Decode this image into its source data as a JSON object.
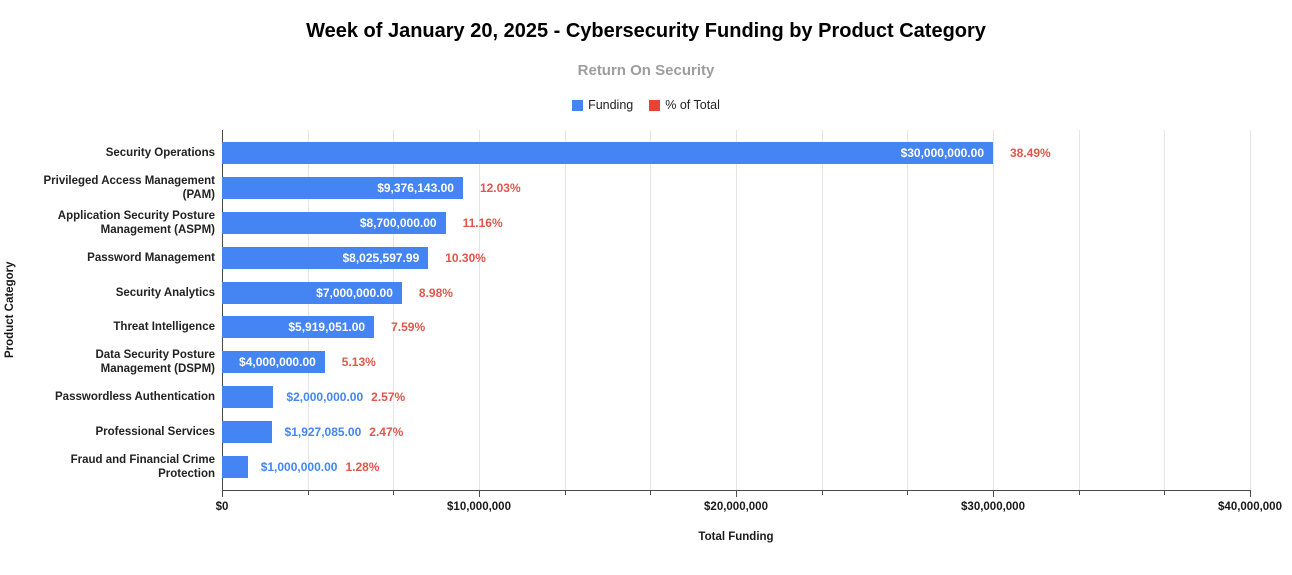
{
  "header": {
    "title": "Week of January 20, 2025 - Cybersecurity Funding by Product Category",
    "subtitle": "Return On Security"
  },
  "legend": {
    "items": [
      {
        "label": "Funding",
        "color": "#4285F4"
      },
      {
        "label": "% of Total",
        "color": "#EA4335"
      }
    ]
  },
  "colors": {
    "bar": "#4584F3",
    "value_label_inside": "#FFFFFF",
    "value_label_outside": "#4285F4",
    "percent_label": "#E2564A",
    "gridline": "#E6E6E6",
    "axis_line": "#4A4A4A"
  },
  "chart_data": {
    "type": "bar",
    "orientation": "horizontal",
    "title": "Week of January 20, 2025 - Cybersecurity Funding by Product Category",
    "subtitle": "Return On Security",
    "xlabel": "Total Funding",
    "ylabel": "Product Category",
    "xlim": [
      0,
      40000000
    ],
    "x_tick_labels": [
      "$0",
      "$10,000,000",
      "$20,000,000",
      "$30,000,000",
      "$40,000,000"
    ],
    "minor_divisions": 12,
    "major_every": 3,
    "grid": true,
    "legend_position": "top",
    "categories": [
      "Security Operations",
      "Privileged Access Management (PAM)",
      "Application Security Posture Management (ASPM)",
      "Password Management",
      "Security Analytics",
      "Threat Intelligence",
      "Data Security Posture Management (DSPM)",
      "Passwordless Authentication",
      "Professional Services",
      "Fraud and Financial Crime Protection"
    ],
    "series": [
      {
        "name": "Funding",
        "values": [
          30000000,
          9376143,
          8700000,
          8025597.99,
          7000000,
          5919051,
          4000000,
          2000000,
          1927085,
          1000000
        ]
      },
      {
        "name": "% of Total",
        "values": [
          38.49,
          12.03,
          11.16,
          10.3,
          8.98,
          7.59,
          5.13,
          2.57,
          2.47,
          1.28
        ]
      }
    ],
    "rows": [
      {
        "category": "Security Operations",
        "value": 30000000,
        "value_label": "$30,000,000.00",
        "percent_label": "38.49%",
        "value_label_inside": true
      },
      {
        "category": "Privileged Access Management\n(PAM)",
        "value": 9376143,
        "value_label": "$9,376,143.00",
        "percent_label": "12.03%",
        "value_label_inside": true
      },
      {
        "category": "Application Security Posture\nManagement (ASPM)",
        "value": 8700000,
        "value_label": "$8,700,000.00",
        "percent_label": "11.16%",
        "value_label_inside": true
      },
      {
        "category": "Password Management",
        "value": 8025597.99,
        "value_label": "$8,025,597.99",
        "percent_label": "10.30%",
        "value_label_inside": true
      },
      {
        "category": "Security Analytics",
        "value": 7000000,
        "value_label": "$7,000,000.00",
        "percent_label": "8.98%",
        "value_label_inside": true
      },
      {
        "category": "Threat Intelligence",
        "value": 5919051,
        "value_label": "$5,919,051.00",
        "percent_label": "7.59%",
        "value_label_inside": true
      },
      {
        "category": "Data Security Posture\nManagement (DSPM)",
        "value": 4000000,
        "value_label": "$4,000,000.00",
        "percent_label": "5.13%",
        "value_label_inside": true
      },
      {
        "category": "Passwordless Authentication",
        "value": 2000000,
        "value_label": "$2,000,000.00",
        "percent_label": "2.57%",
        "value_label_inside": false
      },
      {
        "category": "Professional Services",
        "value": 1927085,
        "value_label": "$1,927,085.00",
        "percent_label": "2.47%",
        "value_label_inside": false
      },
      {
        "category": "Fraud and Financial Crime\nProtection",
        "value": 1000000,
        "value_label": "$1,000,000.00",
        "percent_label": "1.28%",
        "value_label_inside": false
      }
    ]
  }
}
